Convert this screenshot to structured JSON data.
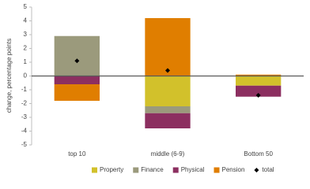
{
  "chart_data": {
    "type": "bar",
    "stacked": true,
    "y_label": "change, percentage points",
    "categories": [
      "top 10",
      "middle (6-9)",
      "Bottom 50"
    ],
    "series": [
      {
        "name": "Property",
        "color": "#d2c12b",
        "values": [
          0,
          -2.2,
          -0.7
        ]
      },
      {
        "name": "Finance",
        "color": "#9b9a7c",
        "values": [
          2.9,
          -0.5,
          0
        ]
      },
      {
        "name": "Physical",
        "color": "#8c2f60",
        "values": [
          -0.6,
          -1.1,
          -0.8
        ]
      },
      {
        "name": "Pension",
        "color": "#e07e00",
        "values": [
          -1.2,
          4.2,
          0.1
        ]
      },
      {
        "name": "total",
        "color": "#000000",
        "kind": "scatter",
        "marker": "diamond",
        "values": [
          1.1,
          0.4,
          -1.4
        ]
      }
    ],
    "ylim": [
      -5,
      5
    ],
    "yticks": [
      5,
      4,
      3,
      2,
      1,
      0,
      -1,
      -2,
      -3,
      -4,
      -5
    ],
    "grid": false,
    "legend": "bottom"
  }
}
